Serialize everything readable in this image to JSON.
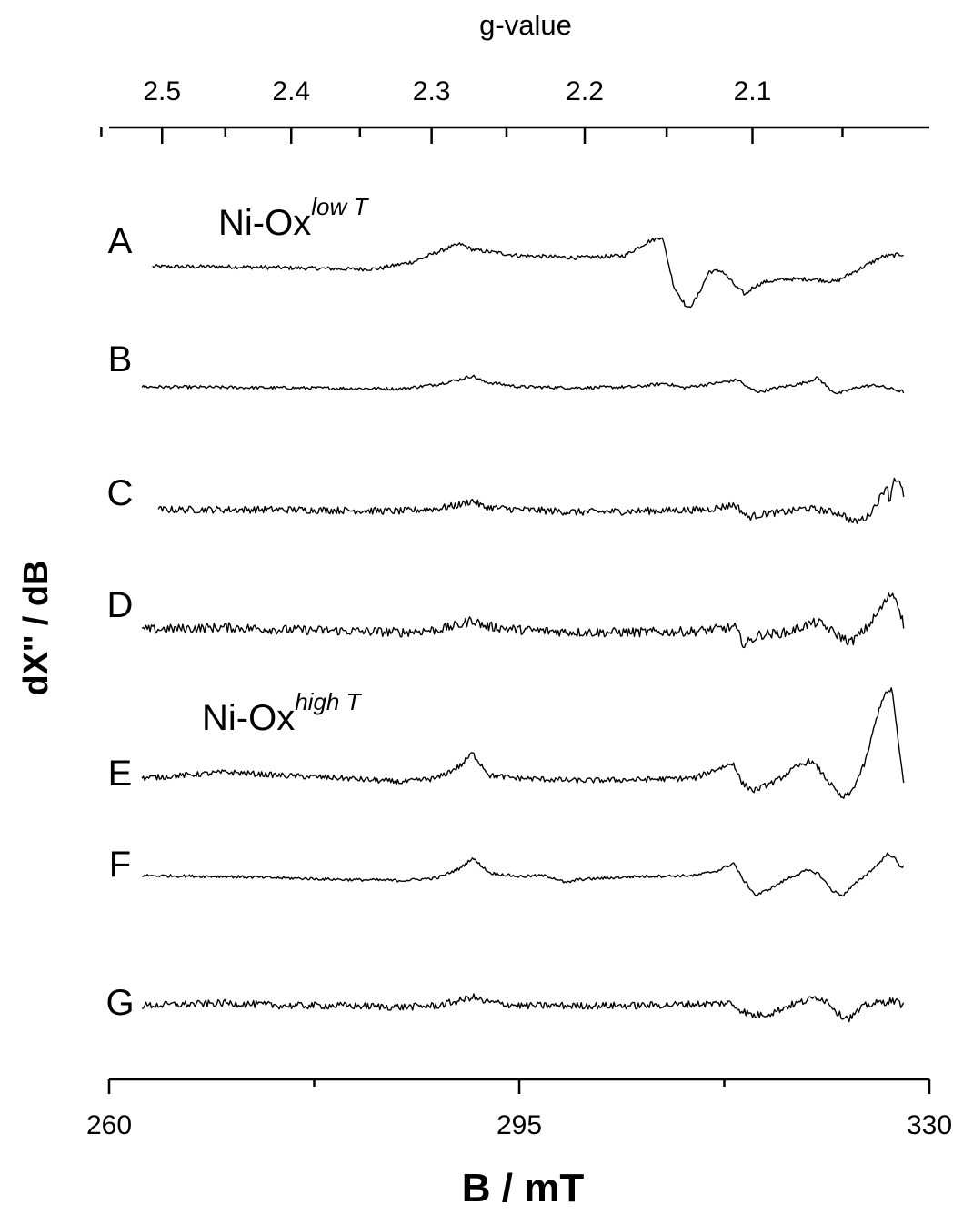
{
  "chart_data": {
    "type": "line",
    "title": "",
    "xlabel": "B / mT",
    "ylabel": "dX'' / dB",
    "x_range": [
      260,
      330
    ],
    "x_ticks": [
      "260",
      "295",
      "330"
    ],
    "x_minor_ticks": [
      277.5,
      312.5
    ],
    "top_axis": {
      "label": "g-value",
      "ticks": [
        "2.5",
        "2.4",
        "2.3",
        "2.2",
        "2.1"
      ],
      "tick_values": [
        2.5,
        2.4,
        2.3,
        2.2,
        2.1
      ],
      "minor_tick_values": [
        2.55,
        2.45,
        2.35,
        2.25,
        2.15,
        2.05
      ]
    },
    "y_ticks_shown": false,
    "grid": false,
    "legend": "none",
    "annotations": [
      {
        "id": "low",
        "text": "Ni-Ox",
        "sup": "low T",
        "near": "A"
      },
      {
        "id": "high",
        "text": "Ni-Ox",
        "sup": "high T",
        "near": "E"
      }
    ],
    "series": [
      {
        "name": "A",
        "x_start": 263.7,
        "x_end": 327.8,
        "noise": 2.5,
        "points": [
          [
            263.7,
            0
          ],
          [
            270,
            0
          ],
          [
            281,
            -5
          ],
          [
            283,
            -4
          ],
          [
            286,
            10
          ],
          [
            289,
            38
          ],
          [
            290,
            45
          ],
          [
            291,
            34
          ],
          [
            295,
            22
          ],
          [
            300,
            18
          ],
          [
            304,
            22
          ],
          [
            306,
            50
          ],
          [
            307.2,
            60
          ],
          [
            308.2,
            -40
          ],
          [
            309.4,
            -85
          ],
          [
            310.2,
            -60
          ],
          [
            311.2,
            -10
          ],
          [
            312.3,
            -8
          ],
          [
            313.5,
            -40
          ],
          [
            314.3,
            -56
          ],
          [
            315,
            -40
          ],
          [
            316,
            -30
          ],
          [
            318,
            -25
          ],
          [
            320,
            -25
          ],
          [
            322,
            -30
          ],
          [
            324,
            -5
          ],
          [
            326,
            20
          ],
          [
            327.8,
            25
          ]
        ]
      },
      {
        "name": "B",
        "x_start": 262.8,
        "x_end": 327.8,
        "noise": 2.0,
        "points": [
          [
            262.8,
            0
          ],
          [
            275,
            -2
          ],
          [
            285,
            -4
          ],
          [
            288,
            5
          ],
          [
            290,
            15
          ],
          [
            291,
            22
          ],
          [
            292,
            10
          ],
          [
            295,
            0
          ],
          [
            300,
            -2
          ],
          [
            305,
            0
          ],
          [
            307.5,
            7
          ],
          [
            309,
            -2
          ],
          [
            312,
            8
          ],
          [
            313.7,
            14
          ],
          [
            314.5,
            -2
          ],
          [
            315.5,
            -10
          ],
          [
            317,
            -2
          ],
          [
            319,
            6
          ],
          [
            320.5,
            18
          ],
          [
            321.5,
            -5
          ],
          [
            322.2,
            -14
          ],
          [
            324,
            0
          ],
          [
            325.5,
            3
          ],
          [
            327.8,
            -10
          ]
        ]
      },
      {
        "name": "C",
        "x_start": 264.2,
        "x_end": 327.8,
        "noise": 4.5,
        "points": [
          [
            264.2,
            0
          ],
          [
            275,
            0
          ],
          [
            285,
            -3
          ],
          [
            288,
            2
          ],
          [
            290,
            10
          ],
          [
            291,
            18
          ],
          [
            292,
            5
          ],
          [
            295,
            0
          ],
          [
            298,
            -3
          ],
          [
            300,
            -5
          ],
          [
            305,
            -3
          ],
          [
            311,
            0
          ],
          [
            313.4,
            10
          ],
          [
            314.5,
            -15
          ],
          [
            316,
            -8
          ],
          [
            318,
            -4
          ],
          [
            319.5,
            3
          ],
          [
            321,
            -2
          ],
          [
            322.5,
            -8
          ],
          [
            323.5,
            -25
          ],
          [
            324.7,
            -15
          ],
          [
            325.7,
            20
          ],
          [
            326.5,
            55
          ],
          [
            327,
            65
          ],
          [
            327.5,
            50
          ],
          [
            327.8,
            30
          ],
          [
            326.5,
            5
          ],
          [
            327.8,
            -10
          ]
        ]
      },
      {
        "name": "D",
        "x_start": 262.8,
        "x_end": 327.8,
        "noise": 6.0,
        "points": [
          [
            262.8,
            0
          ],
          [
            270,
            5
          ],
          [
            275,
            0
          ],
          [
            280,
            -2
          ],
          [
            285,
            -5
          ],
          [
            288,
            0
          ],
          [
            290,
            10
          ],
          [
            291,
            20
          ],
          [
            292,
            8
          ],
          [
            295,
            0
          ],
          [
            300,
            -5
          ],
          [
            305,
            -5
          ],
          [
            310,
            -3
          ],
          [
            313.4,
            5
          ],
          [
            314.2,
            -30
          ],
          [
            315.5,
            -10
          ],
          [
            318,
            -5
          ],
          [
            319.5,
            10
          ],
          [
            320.5,
            15
          ],
          [
            321.5,
            0
          ],
          [
            322.5,
            -15
          ],
          [
            323.3,
            -25
          ],
          [
            324.5,
            0
          ],
          [
            325.5,
            30
          ],
          [
            326.8,
            75
          ],
          [
            327.3,
            55
          ],
          [
            327.8,
            10
          ]
        ]
      },
      {
        "name": "E",
        "x_start": 262.8,
        "x_end": 327.8,
        "noise": 3.5,
        "points": [
          [
            262.8,
            0
          ],
          [
            266,
            5
          ],
          [
            270,
            12
          ],
          [
            275,
            5
          ],
          [
            280,
            0
          ],
          [
            285,
            -8
          ],
          [
            288,
            0
          ],
          [
            290,
            25
          ],
          [
            291,
            50
          ],
          [
            292.5,
            5
          ],
          [
            295,
            0
          ],
          [
            300,
            -5
          ],
          [
            305,
            -3
          ],
          [
            310,
            0
          ],
          [
            311.5,
            15
          ],
          [
            313.3,
            30
          ],
          [
            314,
            -10
          ],
          [
            315,
            -25
          ],
          [
            317,
            -5
          ],
          [
            318.5,
            20
          ],
          [
            319.8,
            35
          ],
          [
            320.5,
            20
          ],
          [
            321.5,
            -10
          ],
          [
            322.5,
            -40
          ],
          [
            323.3,
            -30
          ],
          [
            324.5,
            30
          ],
          [
            325.5,
            120
          ],
          [
            326,
            160
          ],
          [
            326.8,
            180
          ],
          [
            327.3,
            80
          ],
          [
            327.8,
            -10
          ],
          [
            327.8,
            5
          ]
        ]
      },
      {
        "name": "F",
        "x_start": 262.8,
        "x_end": 327.8,
        "noise": 1.8,
        "points": [
          [
            262.8,
            0
          ],
          [
            270,
            -2
          ],
          [
            275,
            -5
          ],
          [
            280,
            -8
          ],
          [
            285,
            -10
          ],
          [
            288,
            -5
          ],
          [
            290,
            15
          ],
          [
            291,
            35
          ],
          [
            292.5,
            5
          ],
          [
            295,
            -2
          ],
          [
            297,
            0
          ],
          [
            298,
            -5
          ],
          [
            299,
            -15
          ],
          [
            300,
            -8
          ],
          [
            305,
            -2
          ],
          [
            310,
            0
          ],
          [
            312,
            10
          ],
          [
            313.3,
            25
          ],
          [
            314,
            -5
          ],
          [
            315.2,
            -40
          ],
          [
            316.5,
            -25
          ],
          [
            318,
            -5
          ],
          [
            319.5,
            10
          ],
          [
            320.5,
            5
          ],
          [
            321.7,
            -30
          ],
          [
            322.6,
            -40
          ],
          [
            323.5,
            -20
          ],
          [
            324.5,
            0
          ],
          [
            325.5,
            20
          ],
          [
            326.5,
            45
          ],
          [
            327.2,
            30
          ],
          [
            327.5,
            15
          ],
          [
            327.8,
            20
          ]
        ]
      },
      {
        "name": "G",
        "x_start": 262.8,
        "x_end": 327.8,
        "noise": 4.5,
        "points": [
          [
            262.8,
            0
          ],
          [
            270,
            5
          ],
          [
            275,
            0
          ],
          [
            280,
            0
          ],
          [
            285,
            -3
          ],
          [
            288,
            0
          ],
          [
            290,
            10
          ],
          [
            291,
            18
          ],
          [
            292,
            8
          ],
          [
            295,
            0
          ],
          [
            300,
            0
          ],
          [
            305,
            0
          ],
          [
            310,
            3
          ],
          [
            313,
            5
          ],
          [
            314,
            -10
          ],
          [
            315,
            -20
          ],
          [
            316.5,
            -15
          ],
          [
            318,
            0
          ],
          [
            319.5,
            10
          ],
          [
            320.5,
            18
          ],
          [
            321.5,
            5
          ],
          [
            322.3,
            -18
          ],
          [
            323.2,
            -25
          ],
          [
            324.5,
            0
          ],
          [
            325.5,
            5
          ],
          [
            327,
            10
          ],
          [
            327.8,
            0
          ]
        ]
      }
    ]
  }
}
